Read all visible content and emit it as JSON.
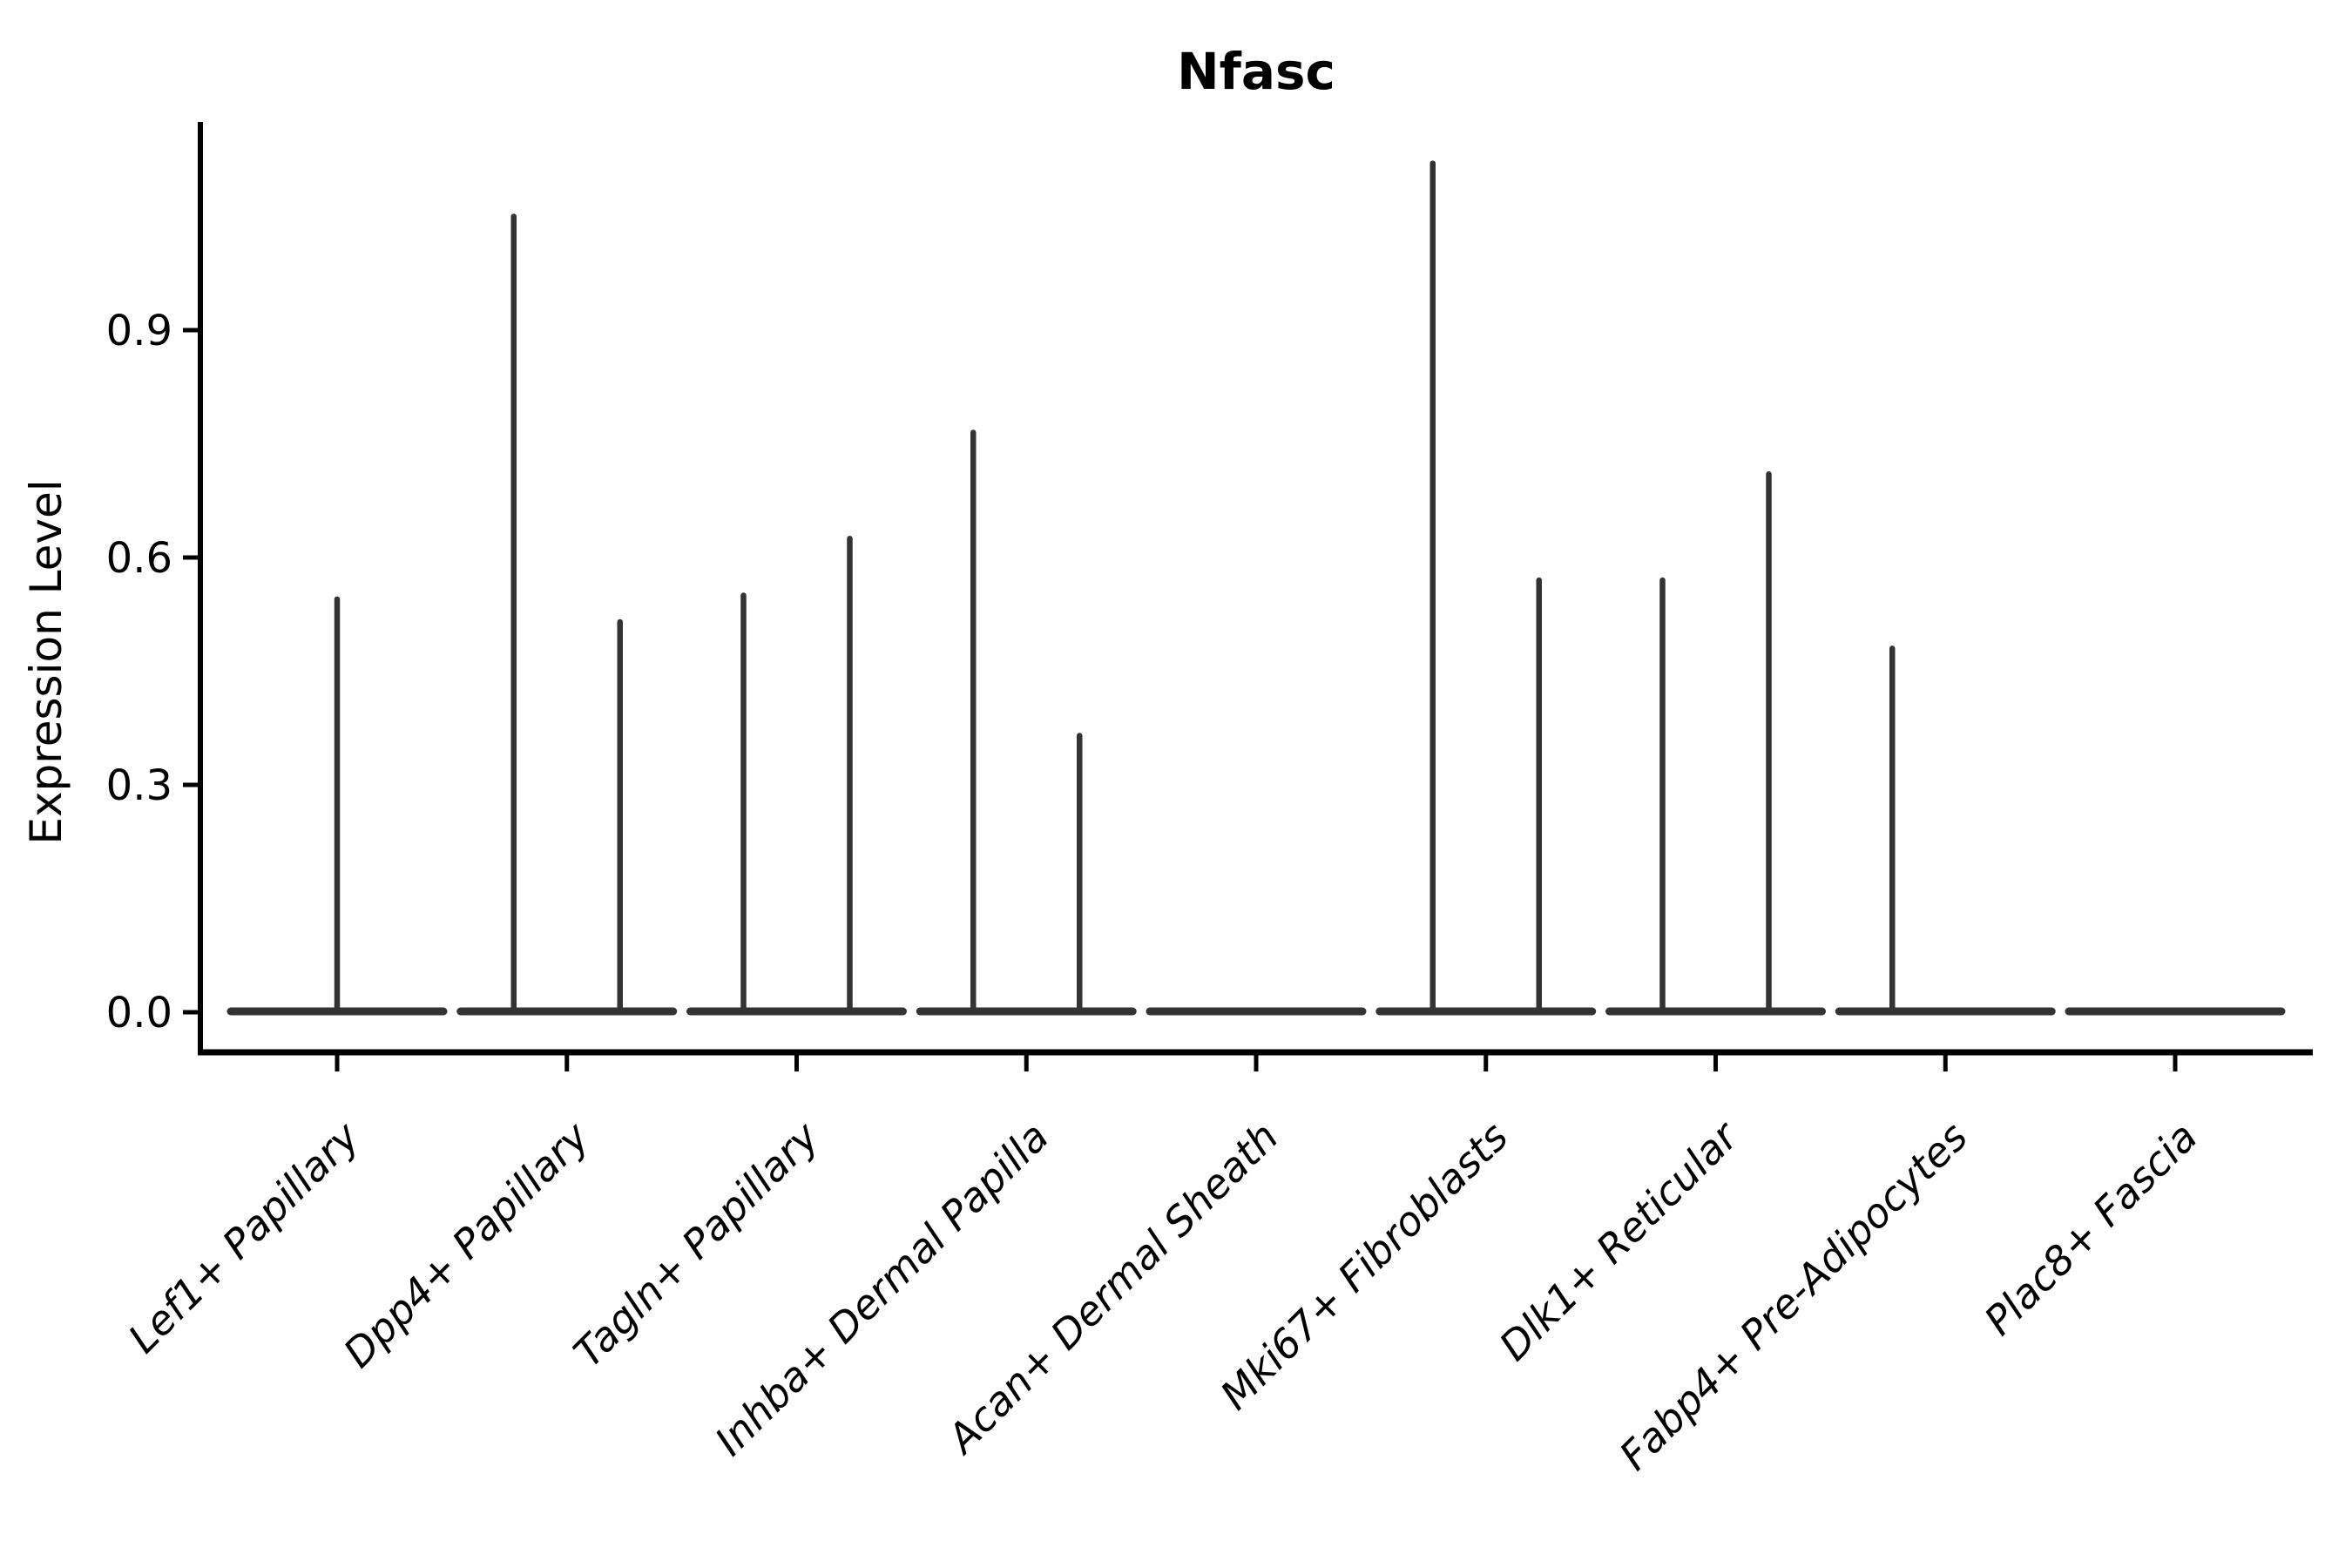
{
  "chart_data": {
    "type": "violin",
    "title": "Nfasc",
    "ylabel": "Expression Level",
    "xlabel": "",
    "legend": null,
    "grid": false,
    "background": "#ffffff",
    "yticks": [
      "0.0",
      "0.3",
      "0.6",
      "0.9"
    ],
    "ytick_values": [
      0.0,
      0.3,
      0.6,
      0.9
    ],
    "ylim": [
      -0.02,
      1.2
    ],
    "description": "Violin plot of Nfasc expression level per fibroblast cluster; most density is flat at 0 with thin spikes up to the max expressing cells. Some clusters contain two side-by-side violins.",
    "categories": [
      {
        "label": "Lef1+ Papillary",
        "violins": [
          {
            "position": "center",
            "max_value": 0.545
          }
        ]
      },
      {
        "label": "Dpp4+ Papillary",
        "violins": [
          {
            "position": "left",
            "max_value": 1.05
          },
          {
            "position": "right",
            "max_value": 0.515
          }
        ]
      },
      {
        "label": "Tagln+ Papillary",
        "violins": [
          {
            "position": "left",
            "max_value": 0.55
          },
          {
            "position": "right",
            "max_value": 0.625
          }
        ]
      },
      {
        "label": "Inhba+ Dermal Papilla",
        "violins": [
          {
            "position": "left",
            "max_value": 0.765
          },
          {
            "position": "right",
            "max_value": 0.365
          }
        ]
      },
      {
        "label": "Acan+ Dermal Sheath",
        "violins": []
      },
      {
        "label": "Mki67+ Fibroblasts",
        "violins": [
          {
            "position": "left",
            "max_value": 1.12
          },
          {
            "position": "right",
            "max_value": 0.57
          }
        ]
      },
      {
        "label": "Dlk1+ Reticular",
        "violins": [
          {
            "position": "left",
            "max_value": 0.57
          },
          {
            "position": "right",
            "max_value": 0.71
          }
        ]
      },
      {
        "label": "Fabp4+ Pre-Adipocytes",
        "violins": [
          {
            "position": "left",
            "max_value": 0.48
          }
        ]
      },
      {
        "label": "Plac8+ Fascia",
        "violins": []
      }
    ],
    "colors": {
      "axis": "#000000",
      "text": "#000000",
      "violin": "#333333",
      "background": "#ffffff"
    }
  }
}
